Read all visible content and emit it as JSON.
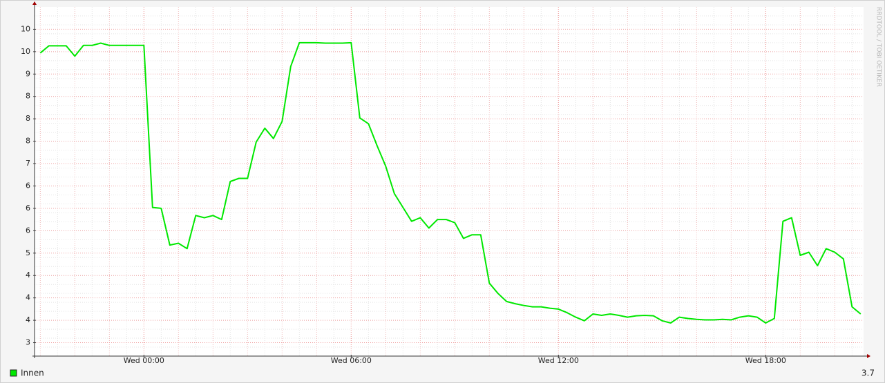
{
  "chart_data": {
    "type": "line",
    "watermark": "RRDTOOL / TOBI OETIKER",
    "legend_value": 3.7,
    "grid": true,
    "x": [
      "Tue 21:00",
      "Tue 21:15",
      "Tue 21:30",
      "Tue 21:45",
      "Tue 22:00",
      "Tue 22:15",
      "Tue 22:30",
      "Tue 22:45",
      "Tue 23:00",
      "Tue 23:15",
      "Tue 23:30",
      "Tue 23:45",
      "Wed 00:00",
      "Wed 00:15",
      "Wed 00:30",
      "Wed 00:45",
      "Wed 01:00",
      "Wed 01:15",
      "Wed 01:30",
      "Wed 01:45",
      "Wed 02:00",
      "Wed 02:15",
      "Wed 02:30",
      "Wed 02:45",
      "Wed 03:00",
      "Wed 03:15",
      "Wed 03:30",
      "Wed 03:45",
      "Wed 04:00",
      "Wed 04:15",
      "Wed 04:30",
      "Wed 04:45",
      "Wed 05:00",
      "Wed 05:15",
      "Wed 05:30",
      "Wed 05:45",
      "Wed 06:00",
      "Wed 06:15",
      "Wed 06:30",
      "Wed 06:45",
      "Wed 07:00",
      "Wed 07:15",
      "Wed 07:30",
      "Wed 07:45",
      "Wed 08:00",
      "Wed 08:15",
      "Wed 08:30",
      "Wed 08:45",
      "Wed 09:00",
      "Wed 09:15",
      "Wed 09:30",
      "Wed 09:45",
      "Wed 10:00",
      "Wed 10:15",
      "Wed 10:30",
      "Wed 10:45",
      "Wed 11:00",
      "Wed 11:15",
      "Wed 11:30",
      "Wed 11:45",
      "Wed 12:00",
      "Wed 12:15",
      "Wed 12:30",
      "Wed 12:45",
      "Wed 13:00",
      "Wed 13:15",
      "Wed 13:30",
      "Wed 13:45",
      "Wed 14:00",
      "Wed 14:15",
      "Wed 14:30",
      "Wed 14:45",
      "Wed 15:00",
      "Wed 15:15",
      "Wed 15:30",
      "Wed 15:45",
      "Wed 16:00",
      "Wed 16:15",
      "Wed 16:30",
      "Wed 16:45",
      "Wed 17:00",
      "Wed 17:15",
      "Wed 17:30",
      "Wed 17:45",
      "Wed 18:00",
      "Wed 18:15",
      "Wed 18:30",
      "Wed 18:45",
      "Wed 19:00",
      "Wed 19:15",
      "Wed 19:30",
      "Wed 19:45",
      "Wed 20:00",
      "Wed 20:15",
      "Wed 20:30",
      "Wed 20:45"
    ],
    "series": [
      {
        "name": "Innen",
        "color": "#00e800",
        "values": [
          9.47,
          9.63,
          9.63,
          9.63,
          9.4,
          9.64,
          9.64,
          9.69,
          9.64,
          9.64,
          9.64,
          9.64,
          9.64,
          6.02,
          6.0,
          5.18,
          5.22,
          5.1,
          5.84,
          5.79,
          5.84,
          5.75,
          6.6,
          6.67,
          6.67,
          7.48,
          7.79,
          7.56,
          7.94,
          9.17,
          9.7,
          9.7,
          9.7,
          9.69,
          9.69,
          9.69,
          9.7,
          8.02,
          7.89,
          7.4,
          6.94,
          6.33,
          6.02,
          5.71,
          5.79,
          5.56,
          5.75,
          5.75,
          5.68,
          5.33,
          5.41,
          5.41,
          4.33,
          4.1,
          3.92,
          3.87,
          3.83,
          3.8,
          3.8,
          3.77,
          3.75,
          3.67,
          3.57,
          3.49,
          3.64,
          3.61,
          3.64,
          3.61,
          3.57,
          3.6,
          3.61,
          3.6,
          3.49,
          3.44,
          3.57,
          3.54,
          3.52,
          3.51,
          3.51,
          3.52,
          3.51,
          3.57,
          3.6,
          3.57,
          3.44,
          3.54,
          5.71,
          5.79,
          4.95,
          5.02,
          4.72,
          5.1,
          5.02,
          4.87,
          3.8,
          3.64
        ]
      }
    ],
    "xlim": [
      "Tue 20:50",
      "Wed 20:50"
    ],
    "xticks": [
      "Wed 00:00",
      "Wed 06:00",
      "Wed 12:00",
      "Wed 18:00"
    ],
    "ylim": [
      2.7,
      10.5
    ],
    "yticks": [
      3,
      {
        "value": 3.5,
        "label": "4"
      },
      4,
      {
        "value": 4.5,
        "label": "4"
      },
      5,
      {
        "value": 5.5,
        "label": "6"
      },
      6,
      {
        "value": 6.5,
        "label": "6"
      },
      7,
      {
        "value": 7.5,
        "label": "8"
      },
      8,
      {
        "value": 8.5,
        "label": "8"
      },
      9,
      {
        "value": 9.5,
        "label": "10"
      },
      10
    ]
  }
}
